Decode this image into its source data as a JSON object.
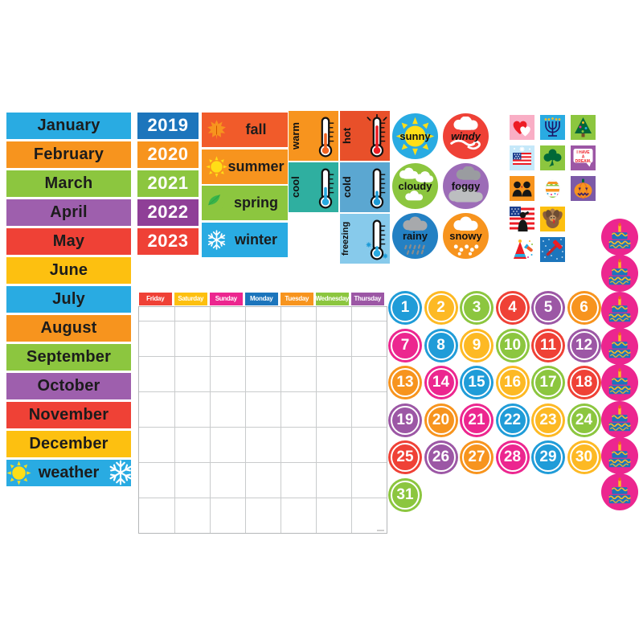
{
  "background_color": "#FFFFFF",
  "months": {
    "items": [
      {
        "label": "January",
        "bg": "#29ABE2"
      },
      {
        "label": "February",
        "bg": "#F7941E"
      },
      {
        "label": "March",
        "bg": "#8CC63F"
      },
      {
        "label": "April",
        "bg": "#9E5FAD"
      },
      {
        "label": "May",
        "bg": "#EF4136"
      },
      {
        "label": "June",
        "bg": "#FDC010"
      },
      {
        "label": "July",
        "bg": "#29ABE2"
      },
      {
        "label": "August",
        "bg": "#F7941E"
      },
      {
        "label": "September",
        "bg": "#8CC63F"
      },
      {
        "label": "October",
        "bg": "#9E5FAD"
      },
      {
        "label": "November",
        "bg": "#EF4136"
      },
      {
        "label": "December",
        "bg": "#FDC010"
      }
    ],
    "weather": {
      "label": "weather",
      "bg": "#29ABE2",
      "left_icon": "sun-icon",
      "right_icon": "snowflake-icon"
    }
  },
  "years": {
    "items": [
      {
        "label": "2019",
        "bg": "#1C75BC"
      },
      {
        "label": "2020",
        "bg": "#F7941E"
      },
      {
        "label": "2021",
        "bg": "#8CC63F"
      },
      {
        "label": "2022",
        "bg": "#8F3F97"
      },
      {
        "label": "2023",
        "bg": "#EF4136"
      }
    ]
  },
  "seasons": {
    "items": [
      {
        "label": "fall",
        "bg": "#F15B2A",
        "icon": "maple-leaf-icon"
      },
      {
        "label": "summer",
        "bg": "#F7941E",
        "icon": "sun-icon"
      },
      {
        "label": "spring",
        "bg": "#8CC63F",
        "icon": "leaves-icon"
      },
      {
        "label": "winter",
        "bg": "#29ABE2",
        "icon": "snowflake-icon"
      }
    ]
  },
  "temperatures": {
    "icon": "thermometer-icon",
    "items": [
      {
        "label": "warm",
        "bg": "#F7941E",
        "mercury": "#F26522",
        "level": 0.55,
        "extra": "none"
      },
      {
        "label": "hot",
        "bg": "#E8502A",
        "mercury": "#ED1C24",
        "level": 0.85,
        "extra": "heat-rays"
      },
      {
        "label": "cool",
        "bg": "#2FAFA0",
        "mercury": "#27AAE1",
        "level": 0.45,
        "extra": "none"
      },
      {
        "label": "cold",
        "bg": "#5BA7D1",
        "mercury": "#1C9AD6",
        "level": 0.3,
        "extra": "none"
      },
      {
        "label": "freezing",
        "bg": "#87CAEB",
        "mercury": "#29ABE2",
        "level": 0.15,
        "extra": "snowflakes"
      }
    ]
  },
  "weather_conditions": {
    "items": [
      {
        "label": "sunny",
        "bg": "#29ABE2",
        "icon": "sun-icon",
        "italic": false
      },
      {
        "label": "windy",
        "bg": "#EF4136",
        "icon": "wind-cloud-icon",
        "italic": true
      },
      {
        "label": "cloudy",
        "bg": "#8CC63F",
        "icon": "clouds-icon",
        "italic": false
      },
      {
        "label": "foggy",
        "bg": "#9C6CB7",
        "icon": "fog-clouds-icon",
        "italic": false
      },
      {
        "label": "rainy",
        "bg": "#2380C3",
        "icon": "rain-cloud-icon",
        "italic": false
      },
      {
        "label": "snowy",
        "bg": "#F7941E",
        "icon": "snow-cloud-icon",
        "italic": false
      }
    ]
  },
  "holidays": {
    "tiles": [
      {
        "name": "valentines-hearts-icon",
        "bg": "#F9AEC5"
      },
      {
        "name": "hanukkah-menorah-icon",
        "bg": "#29ABE2"
      },
      {
        "name": "christmas-tree-icon",
        "bg": "#8CC63F"
      },
      {
        "name": "july4-flag-fireworks-icon",
        "bg": "#C5E8F9"
      },
      {
        "name": "shamrock-icon",
        "bg": "#8CC63F"
      },
      {
        "name": "mlk-dream-bubble-icon",
        "bg": "#9C57A5"
      },
      {
        "name": "presidents-profiles-icon",
        "bg": "#F7941E"
      },
      {
        "name": "easter-egg-icon",
        "bg": "#FFFFFF"
      },
      {
        "name": "halloween-pumpkin-icon",
        "bg": "#7C5AA7"
      },
      {
        "name": "veterans-salute-flag-icon",
        "bg": "#FFFFFF"
      },
      {
        "name": "thanksgiving-turkey-icon",
        "bg": "#FDC010"
      },
      {
        "name": "newyear-party-icon",
        "bg": "#FFFFFF"
      },
      {
        "name": "labor-hammer-icon",
        "bg": "#1C75BC"
      }
    ],
    "mlk": {
      "line1": "I HAVE",
      "line2": "A",
      "line3": "DREAM."
    }
  },
  "calendar": {
    "day_headers": [
      {
        "label": "Friday",
        "bg": "#EF4136"
      },
      {
        "label": "Saturday",
        "bg": "#FDC010"
      },
      {
        "label": "Sunday",
        "bg": "#EC268F"
      },
      {
        "label": "Monday",
        "bg": "#1C75BC"
      },
      {
        "label": "Tuesday",
        "bg": "#F7941E"
      },
      {
        "label": "Wednesday",
        "bg": "#8CC63F"
      },
      {
        "label": "Thursday",
        "bg": "#9C57A5"
      }
    ],
    "grid": {
      "columns": 7,
      "body_rows": 6,
      "header_strip_height": 17
    }
  },
  "date_numbers": {
    "values": [
      1,
      2,
      3,
      4,
      5,
      6,
      7,
      8,
      9,
      10,
      11,
      12,
      13,
      14,
      15,
      16,
      17,
      18,
      19,
      20,
      21,
      22,
      23,
      24,
      25,
      26,
      27,
      28,
      29,
      30,
      31
    ],
    "color_cycle": [
      "#209CD8",
      "#FDB924",
      "#8CC63F",
      "#EF4136",
      "#9C57A5",
      "#F7941E",
      "#EC268F"
    ]
  },
  "birthday_markers": {
    "count": 8,
    "bg": "#EC268F",
    "icon": "birthday-cake-icon",
    "cake_color": "#1C75BC",
    "accent_color": "#FDB924"
  }
}
